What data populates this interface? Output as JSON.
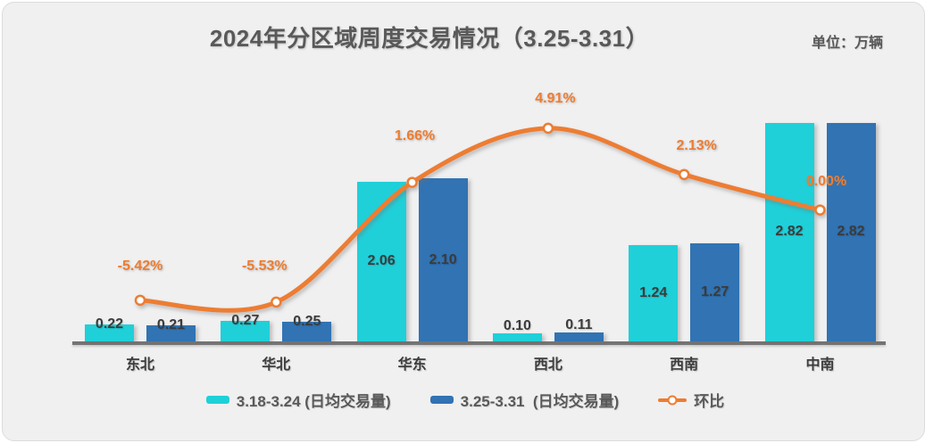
{
  "header": {
    "title": "2024年分区域周度交易情况（3.25-3.31）",
    "unit_label": "单位：万辆"
  },
  "colors": {
    "series_week1": "#1fd0d9",
    "series_week2": "#3173b3",
    "line": "#ed7d31",
    "title_text": "#595959",
    "value_text": "#3b3b3b",
    "axis_line": "#747474",
    "background": "#f0f0f1"
  },
  "chart_data": {
    "type": "bar",
    "subtype": "grouped bars + smooth line (secondary % axis)",
    "title": "2024年分区域周度交易情况（3.25-3.31）",
    "unit": "万辆",
    "categories": [
      "东北",
      "华北",
      "华东",
      "西北",
      "西南",
      "中南"
    ],
    "series": [
      {
        "name": "3.18-3.24 (日均交易量)",
        "type": "bar",
        "color": "#1fd0d9",
        "values": [
          0.22,
          0.27,
          2.06,
          0.1,
          1.24,
          2.82
        ],
        "value_labels": [
          "0.22",
          "0.27",
          "2.06",
          "0.10",
          "1.24",
          "2.82"
        ]
      },
      {
        "name": "3.25-3.31  (日均交易量)",
        "type": "bar",
        "color": "#3173b3",
        "values": [
          0.21,
          0.25,
          2.1,
          0.11,
          1.27,
          2.82
        ],
        "value_labels": [
          "0.21",
          "0.25",
          "2.10",
          "0.11",
          "1.27",
          "2.82"
        ]
      },
      {
        "name": "环比",
        "type": "line",
        "axis": "secondary",
        "color": "#ed7d31",
        "values": [
          -5.42,
          -5.53,
          1.66,
          4.91,
          2.13,
          0.0
        ],
        "value_labels": [
          "-5.42%",
          "-5.53%",
          "1.66%",
          "4.91%",
          "2.13%",
          "0.00%"
        ]
      }
    ],
    "y_axis": {
      "visible": false,
      "implied_range": [
        0,
        3.2
      ]
    },
    "secondary_axis": {
      "visible": false,
      "unit": "%",
      "implied_range": [
        -8,
        8
      ]
    },
    "grid": false,
    "legend_position": "bottom"
  },
  "legend": {
    "items": [
      {
        "label": "3.18-3.24 (日均交易量)",
        "marker": "bar-swatch",
        "color": "#1fd0d9"
      },
      {
        "label": "3.25-3.31  (日均交易量)",
        "marker": "bar-swatch",
        "color": "#3173b3"
      },
      {
        "label": "环比",
        "marker": "line-marker",
        "color": "#ed7d31"
      }
    ]
  }
}
